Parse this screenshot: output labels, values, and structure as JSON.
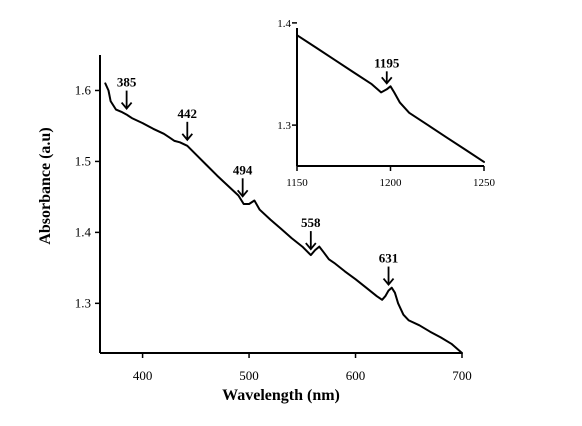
{
  "chart_data": [
    {
      "type": "line",
      "xlabel": "Wavelength (nm)",
      "ylabel": "Absorbance (a.u)",
      "xlim": [
        360,
        700
      ],
      "ylim": [
        1.23,
        1.65
      ],
      "xticks": [
        400,
        500,
        600,
        700
      ],
      "yticks": [
        1.3,
        1.4,
        1.5,
        1.6
      ],
      "series": [
        {
          "x": [
            365,
            368,
            370,
            375,
            380,
            385,
            390,
            400,
            410,
            420,
            425,
            430,
            435,
            442,
            450,
            460,
            470,
            480,
            490,
            495,
            500,
            505,
            510,
            520,
            530,
            540,
            550,
            558,
            562,
            566,
            570,
            575,
            580,
            590,
            600,
            610,
            620,
            625,
            628,
            631,
            634,
            637,
            640,
            645,
            650,
            660,
            670,
            680,
            690,
            700
          ],
          "y": [
            1.61,
            1.6,
            1.585,
            1.573,
            1.57,
            1.566,
            1.561,
            1.554,
            1.546,
            1.539,
            1.534,
            1.529,
            1.527,
            1.522,
            1.51,
            1.495,
            1.48,
            1.466,
            1.452,
            1.44,
            1.44,
            1.445,
            1.432,
            1.418,
            1.405,
            1.392,
            1.38,
            1.368,
            1.375,
            1.38,
            1.372,
            1.362,
            1.357,
            1.345,
            1.334,
            1.322,
            1.31,
            1.305,
            1.31,
            1.318,
            1.322,
            1.315,
            1.3,
            1.284,
            1.276,
            1.269,
            1.26,
            1.252,
            1.243,
            1.23
          ]
        }
      ],
      "annotations": [
        {
          "label": "385",
          "x": 385
        },
        {
          "label": "442",
          "x": 442
        },
        {
          "label": "494",
          "x": 494
        },
        {
          "label": "558",
          "x": 558
        },
        {
          "label": "631",
          "x": 631
        }
      ]
    },
    {
      "type": "line",
      "xlabel": "",
      "ylabel": "",
      "xlim": [
        1150,
        1250
      ],
      "ylim": [
        1.26,
        1.395
      ],
      "xticks": [
        1150,
        1200,
        1250
      ],
      "yticks": [
        1.3,
        1.4
      ],
      "series": [
        {
          "x": [
            1150,
            1160,
            1170,
            1180,
            1190,
            1195,
            1198,
            1200,
            1202,
            1205,
            1210,
            1220,
            1230,
            1240,
            1250
          ],
          "y": [
            1.388,
            1.376,
            1.364,
            1.352,
            1.34,
            1.332,
            1.335,
            1.338,
            1.332,
            1.322,
            1.312,
            1.3,
            1.288,
            1.276,
            1.264
          ]
        }
      ],
      "annotations": [
        {
          "label": "1195",
          "x": 1198
        }
      ]
    }
  ]
}
